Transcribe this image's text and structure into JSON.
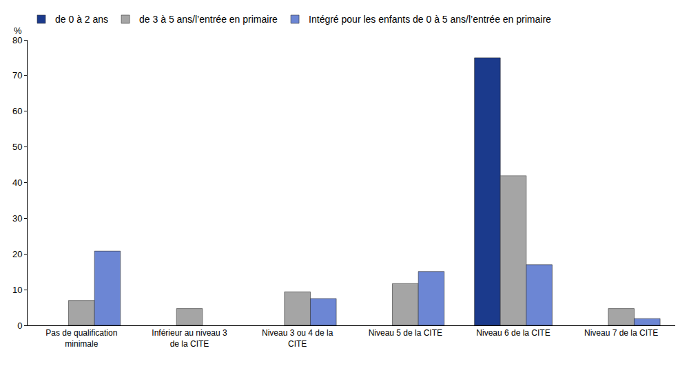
{
  "chart_data": {
    "type": "bar",
    "y_label": "%",
    "categories": [
      "Pas de qualification minimale",
      "Inférieur au niveau 3 de la CITE",
      "Niveau 3 ou 4 de la CITE",
      "Niveau 5 de la CITE",
      "Niveau 6 de la CITE",
      "Niveau 7 de la CITE"
    ],
    "series": [
      {
        "name": "de 0 à 2 ans",
        "color": "#1b3a8c",
        "values": [
          null,
          null,
          null,
          null,
          75,
          null
        ]
      },
      {
        "name": "de 3 à 5 ans/l’entrée en primaire",
        "color": "#a5a5a5",
        "values": [
          7,
          4.7,
          9.4,
          11.7,
          41.9,
          4.7
        ]
      },
      {
        "name": "Intégré pour les enfants de 0 à 5 ans/l’entrée en primaire",
        "color": "#6c86d4",
        "values": [
          20.8,
          null,
          7.5,
          15.1,
          17,
          1.9
        ]
      }
    ],
    "ylim": [
      0,
      80
    ],
    "yticks": [
      0,
      10,
      20,
      30,
      40,
      50,
      60,
      70,
      80
    ],
    "grid": false,
    "legend": "top"
  }
}
